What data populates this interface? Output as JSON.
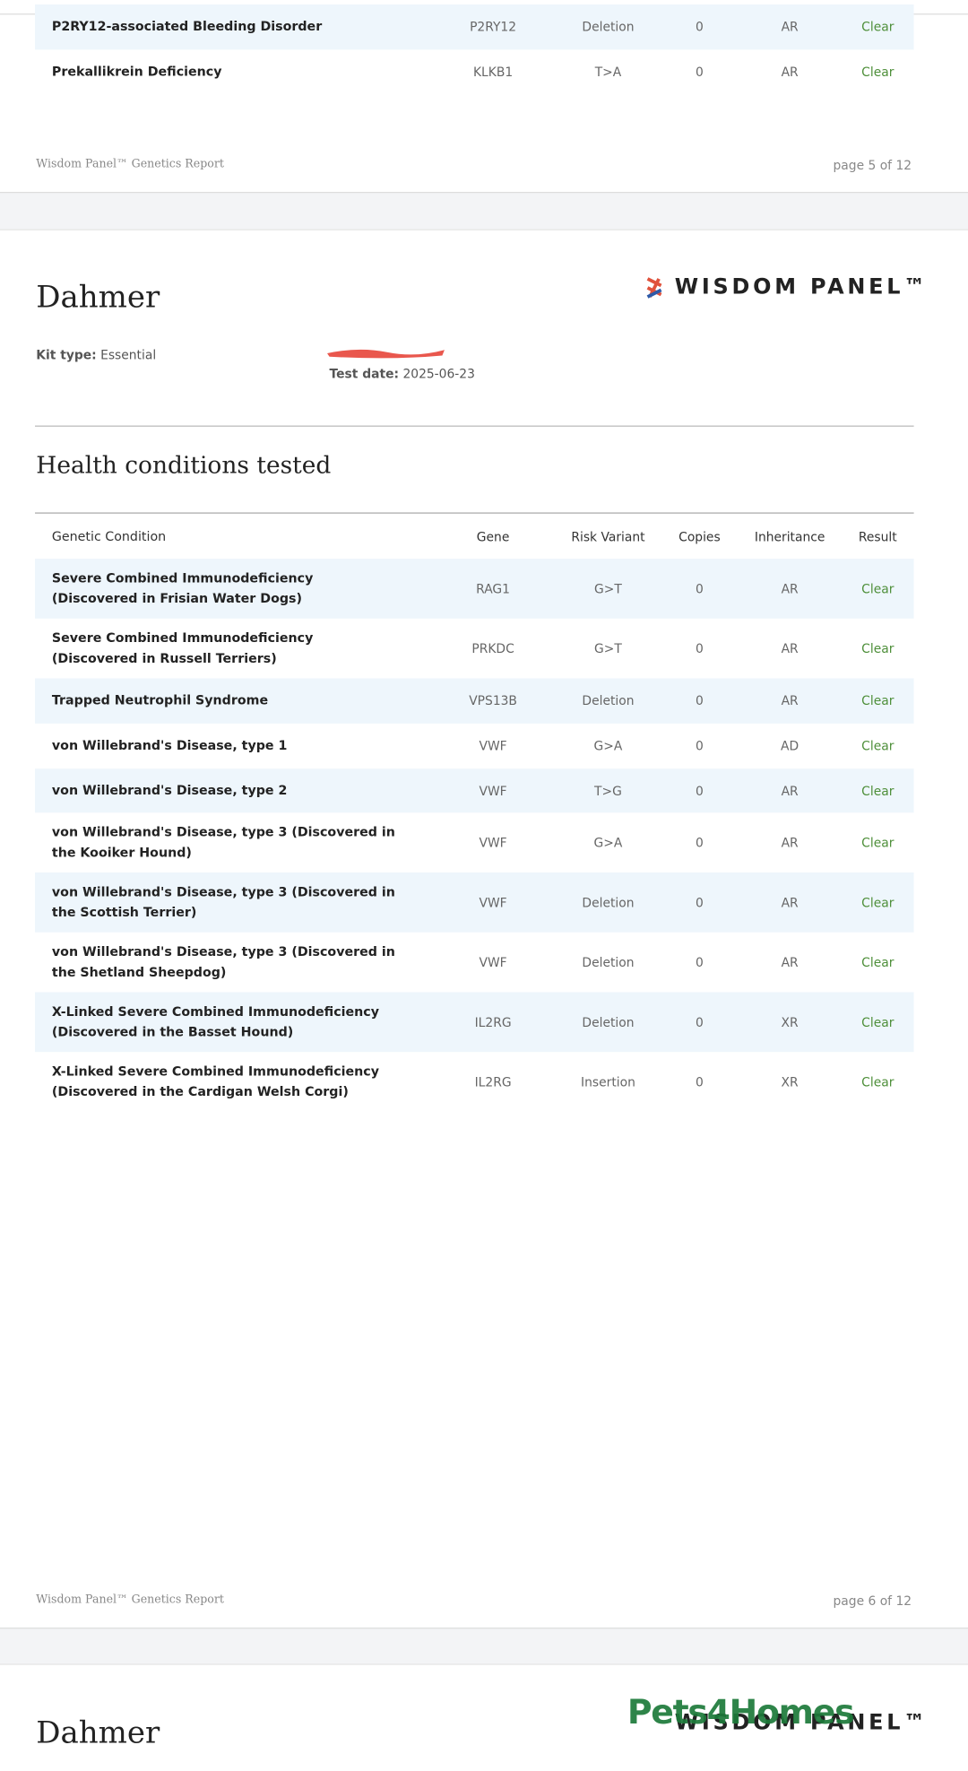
{
  "previous_page": {
    "rows": [
      [
        "P2RY12-associated Bleeding Disorder",
        "P2RY12",
        "Deletion",
        "0",
        "AR",
        "Clear"
      ],
      [
        "Prekallikrein Deficiency",
        "KLKB1",
        "T>A",
        "0",
        "AR",
        "Clear"
      ]
    ],
    "footer": {
      "left": "Wisdom Panel™ Genetics Report",
      "right": "page 5 of 12"
    }
  },
  "page": {
    "name": "Dahmer",
    "logo": "WISDOM PANEL™",
    "kit_type": {
      "label": "Kit type:",
      "value": "Essential"
    },
    "test_date": {
      "label": "Test date:",
      "value": "2025-06-23"
    },
    "section_title": "Health conditions tested",
    "table": {
      "columns": [
        "Genetic Condition",
        "Gene",
        "Risk Variant",
        "Copies",
        "Inheritance",
        "Result"
      ],
      "rows": [
        [
          "Severe Combined Immunodeficiency (Discovered in Frisian Water Dogs)",
          "RAG1",
          "G>T",
          "0",
          "AR",
          "Clear"
        ],
        [
          "Severe Combined Immunodeficiency (Discovered in Russell Terriers)",
          "PRKDC",
          "G>T",
          "0",
          "AR",
          "Clear"
        ],
        [
          "Trapped Neutrophil Syndrome",
          "VPS13B",
          "Deletion",
          "0",
          "AR",
          "Clear"
        ],
        [
          "von Willebrand's Disease, type 1",
          "VWF",
          "G>A",
          "0",
          "AD",
          "Clear"
        ],
        [
          "von Willebrand's Disease, type 2",
          "VWF",
          "T>G",
          "0",
          "AR",
          "Clear"
        ],
        [
          "von Willebrand's Disease, type 3 (Discovered in the Kooiker Hound)",
          "VWF",
          "G>A",
          "0",
          "AR",
          "Clear"
        ],
        [
          "von Willebrand's Disease, type 3 (Discovered in the Scottish Terrier)",
          "VWF",
          "Deletion",
          "0",
          "AR",
          "Clear"
        ],
        [
          "von Willebrand's Disease, type 3 (Discovered in the Shetland Sheepdog)",
          "VWF",
          "Deletion",
          "0",
          "AR",
          "Clear"
        ],
        [
          "X-Linked Severe Combined Immunodeficiency (Discovered in the Basset Hound)",
          "IL2RG",
          "Deletion",
          "0",
          "XR",
          "Clear"
        ],
        [
          "X-Linked Severe Combined Immunodeficiency (Discovered in the Cardigan Welsh Corgi)",
          "IL2RG",
          "Insertion",
          "0",
          "XR",
          "Clear"
        ]
      ]
    },
    "footer": {
      "left": "Wisdom Panel™ Genetics Report",
      "right": "page 6 of 12"
    }
  },
  "next_page": {
    "name": "Dahmer",
    "logo": "WISDOM PANEL™"
  },
  "watermark": "Pets4Homes"
}
